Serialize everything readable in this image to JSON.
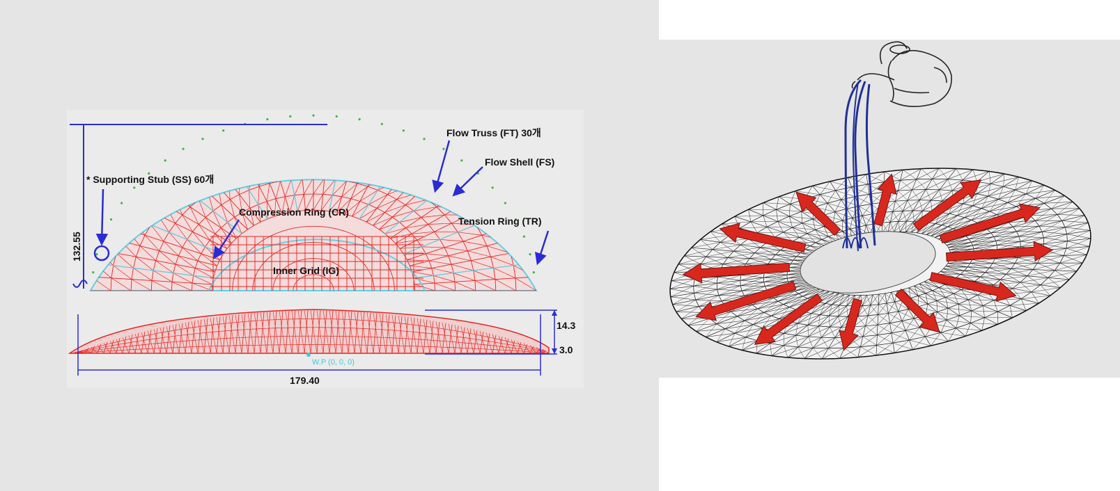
{
  "left_diagram": {
    "labels": {
      "supporting_stub": "* Supporting Stub (SS) 60개",
      "compression_ring": "Compression Ring (CR)",
      "inner_grid": "Inner Grid (IG)",
      "flow_truss": "Flow Truss (FT) 30개",
      "flow_shell": "Flow Shell (FS)",
      "tension_ring": "Tension Ring (TR)"
    },
    "dimensions": {
      "height": "132.55",
      "width": "179.40",
      "rise": "14.3",
      "base": "3.0",
      "origin": "W.P (0, 0, 0)"
    }
  },
  "right_diagram": {
    "radial_arrow_count": 12
  },
  "colors": {
    "background": "#e5e5e5",
    "truss_red": "#e8231f",
    "ring_cyan": "#5fd0e6",
    "dimension_blue": "#2b2bd6",
    "arrow_red": "#d8281e",
    "water_blue": "#1f2f9a",
    "mesh_black": "#111111"
  }
}
